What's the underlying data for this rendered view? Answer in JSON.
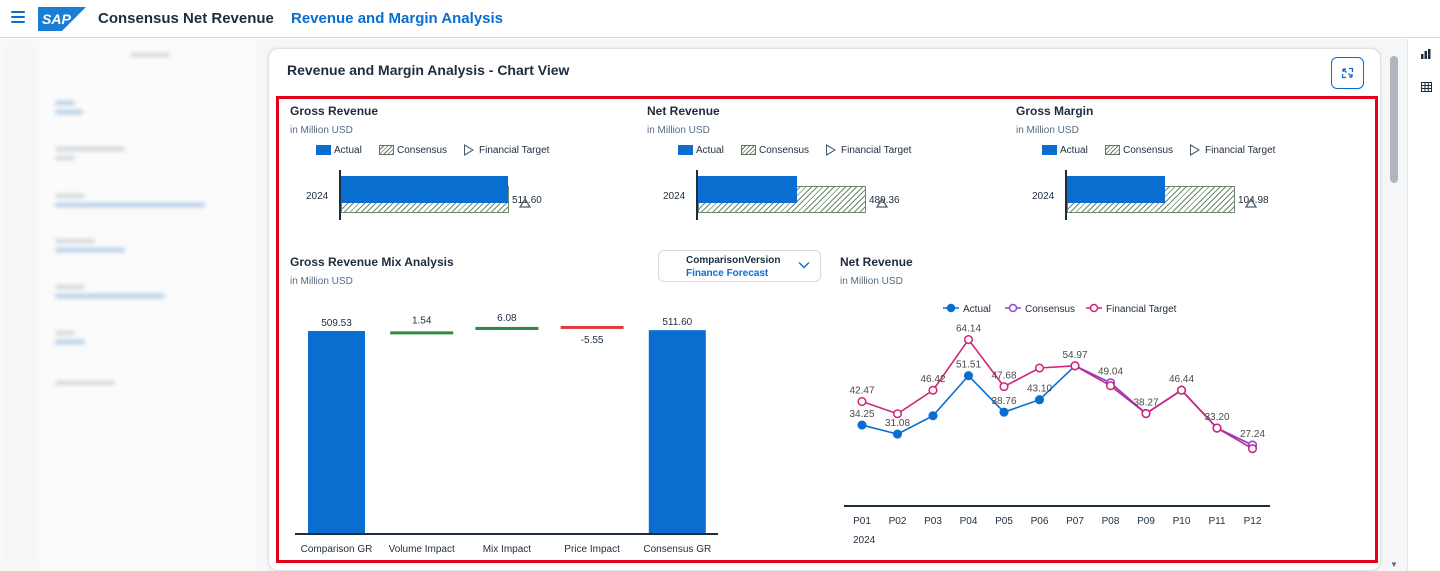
{
  "shell": {
    "app_title": "Consensus Net Revenue",
    "page_title": "Revenue and Margin Analysis",
    "logo_text": "SAP"
  },
  "card": {
    "title": "Revenue and Margin Analysis - Chart View"
  },
  "bullets": [
    {
      "title": "Gross Revenue",
      "unit": "in Million USD",
      "year": "2024",
      "value_label": "511.60",
      "actual": 509.53,
      "consensus": 511.6
    },
    {
      "title": "Net Revenue",
      "unit": "in Million USD",
      "year": "2024",
      "value_label": "489.36",
      "actual": 287.5,
      "consensus": 489.36
    },
    {
      "title": "Gross Margin",
      "unit": "in Million USD",
      "year": "2024",
      "value_label": "104.98",
      "actual": 61.5,
      "consensus": 104.98
    }
  ],
  "legend": {
    "actual": "Actual",
    "consensus": "Consensus",
    "target": "Financial Target"
  },
  "waterfall": {
    "title": "Gross Revenue Mix Analysis",
    "unit": "in Million USD"
  },
  "comparison": {
    "label": "ComparisonVersion",
    "value": "Finance Forecast"
  },
  "linechart": {
    "title": "Net Revenue",
    "unit": "in Million USD",
    "year_label": "2024"
  },
  "chart_data": [
    {
      "type": "bar",
      "categories": [
        "Comparison GR",
        "Volume Impact",
        "Mix Impact",
        "Price Impact",
        "Consensus GR"
      ],
      "values": [
        509.53,
        1.54,
        6.08,
        -5.55,
        511.6
      ],
      "labels": [
        "509.53",
        "1.54",
        "6.08",
        "-5.55",
        "511.60"
      ],
      "colors": [
        "#0a6ed1",
        "#2b8a3e",
        "#2b8a3e",
        "#e03a3e",
        "#0a6ed1"
      ]
    },
    {
      "type": "line",
      "categories": [
        "P01",
        "P02",
        "P03",
        "P04",
        "P05",
        "P06",
        "P07",
        "P08",
        "P09",
        "P10",
        "P11",
        "P12"
      ],
      "series": [
        {
          "name": "Actual",
          "color": "#0a6ed1",
          "values": [
            34.25,
            31.08,
            37.5,
            51.51,
            38.76,
            43.1,
            54.97,
            49.04,
            38.27,
            46.44,
            33.2,
            27.24
          ],
          "labels": [
            "34.25",
            "31.08",
            "",
            "51.51",
            "38.76",
            "43.10",
            "",
            "",
            "",
            "",
            "",
            ""
          ]
        },
        {
          "name": "Consensus",
          "color": "#8e44d4",
          "values": [
            null,
            null,
            null,
            null,
            null,
            null,
            54.97,
            49.04,
            38.27,
            46.44,
            33.2,
            27.24
          ],
          "labels": [
            "",
            "",
            "",
            "",
            "",
            "",
            "",
            "49.04",
            "38.27",
            "46.44",
            "33.20",
            "27.24"
          ]
        },
        {
          "name": "Financial Target",
          "color": "#d0237a",
          "values": [
            42.47,
            38.2,
            46.42,
            64.14,
            47.68,
            54.2,
            54.97,
            48.0,
            38.27,
            46.44,
            33.2,
            26.0
          ],
          "labels": [
            "42.47",
            "",
            "46.42",
            "64.14",
            "47.68",
            "",
            "54.97",
            "",
            "",
            "",
            "",
            ""
          ]
        }
      ],
      "ylim": [
        0,
        70
      ]
    }
  ]
}
